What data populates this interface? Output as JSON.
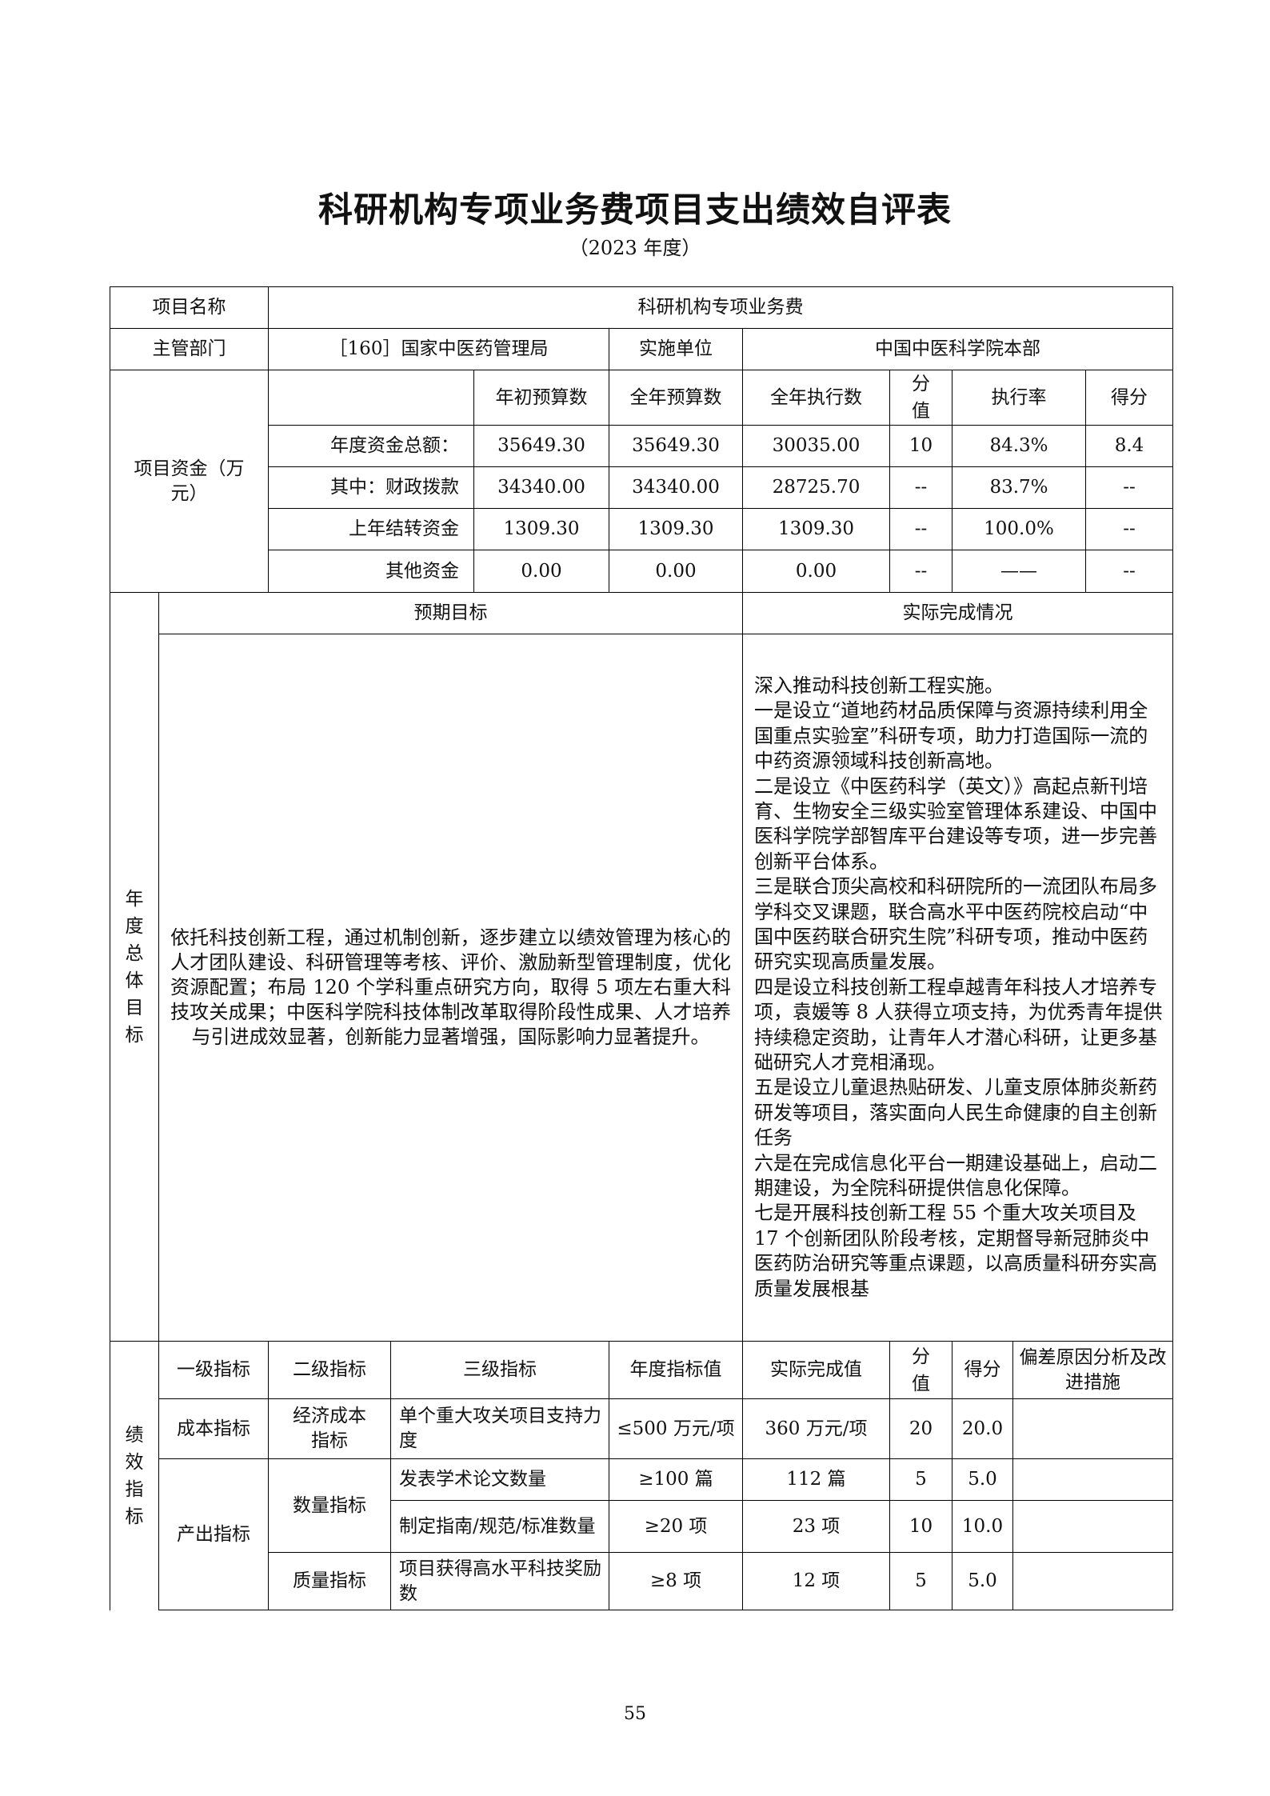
{
  "title": "科研机构专项业务费项目支出绩效自评表",
  "subtitle": "（2023 年度）",
  "basic": {
    "project_name_label": "项目名称",
    "project_name": "科研机构专项业务费",
    "dept_label": "主管部门",
    "dept": "［160］国家中医药管理局",
    "unit_label": "实施单位",
    "unit": "中国中医科学院本部"
  },
  "funds": {
    "label": "项目资金（万元）",
    "headers": [
      "年初预算数",
      "全年预算数",
      "全年执行数",
      "分值",
      "执行率",
      "得分"
    ],
    "rows": [
      {
        "name": "年度资金总额：",
        "initial": "35649.30",
        "annual": "35649.30",
        "executed": "30035.00",
        "weight": "10",
        "rate": "84.3%",
        "score": "8.4"
      },
      {
        "name": "其中：财政拨款",
        "initial": "34340.00",
        "annual": "34340.00",
        "executed": "28725.70",
        "weight": "--",
        "rate": "83.7%",
        "score": "--"
      },
      {
        "name": "上年结转资金",
        "initial": "1309.30",
        "annual": "1309.30",
        "executed": "1309.30",
        "weight": "--",
        "rate": "100.0%",
        "score": "--"
      },
      {
        "name": "其他资金",
        "initial": "0.00",
        "annual": "0.00",
        "executed": "0.00",
        "weight": "--",
        "rate": "——",
        "score": "--"
      }
    ]
  },
  "goals": {
    "label": "年度总体目标",
    "expected_header": "预期目标",
    "actual_header": "实际完成情况",
    "expected": "依托科技创新工程，通过机制创新，逐步建立以绩效管理为核心的人才团队建设、科研管理等考核、评价、激励新型管理制度，优化资源配置；布局 120 个学科重点研究方向，取得 5 项左右重大科技攻关成果；中医科学院科技体制改革取得阶段性成果、人才培养与引进成效显著，创新能力显著增强，国际影响力显著提升。",
    "actual": [
      "深入推动科技创新工程实施。",
      "一是设立“道地药材品质保障与资源持续利用全国重点实验室”科研专项，助力打造国际一流的中药资源领域科技创新高地。",
      "二是设立《中医药科学（英文）》高起点新刊培育、生物安全三级实验室管理体系建设、中国中医科学院学部智库平台建设等专项，进一步完善创新平台体系。",
      "三是联合顶尖高校和科研院所的一流团队布局多学科交叉课题，联合高水平中医药院校启动“中国中医药联合研究生院”科研专项，推动中医药研究实现高质量发展。",
      "四是设立科技创新工程卓越青年科技人才培养专项，袁媛等 8 人获得立项支持，为优秀青年提供持续稳定资助，让青年人才潜心科研，让更多基础研究人才竞相涌现。",
      "五是设立儿童退热贴研发、儿童支原体肺炎新药研发等项目，落实面向人民生命健康的自主创新任务",
      "六是在完成信息化平台一期建设基础上，启动二期建设，为全院科研提供信息化保障。",
      "七是开展科技创新工程 55 个重大攻关项目及 17 个创新团队阶段考核，定期督导新冠肺炎中医药防治研究等重点课题，以高质量科研夯实高质量发展根基"
    ]
  },
  "indicators": {
    "label": "绩效指标",
    "headers": [
      "一级指标",
      "二级指标",
      "三级指标",
      "年度指标值",
      "实际完成值",
      "分值",
      "得分",
      "偏差原因分析及改进措施"
    ],
    "groups": {
      "cost": "成本指标",
      "output": "产出指标",
      "economic_cost": "经济成本指标",
      "quantity": "数量指标",
      "quality": "质量指标"
    },
    "rows": [
      {
        "name": "单个重大攻关项目支持力度",
        "target": "≤500 万元/项",
        "actual": "360 万元/项",
        "weight": "20",
        "score": "20.0",
        "reason": ""
      },
      {
        "name": "发表学术论文数量",
        "target": "≥100 篇",
        "actual": "112 篇",
        "weight": "5",
        "score": "5.0",
        "reason": ""
      },
      {
        "name": "制定指南/规范/标准数量",
        "target": "≥20 项",
        "actual": "23 项",
        "weight": "10",
        "score": "10.0",
        "reason": ""
      },
      {
        "name": "项目获得高水平科技奖励数",
        "target": "≥8 项",
        "actual": "12 项",
        "weight": "5",
        "score": "5.0",
        "reason": ""
      }
    ]
  },
  "page_number": "55"
}
